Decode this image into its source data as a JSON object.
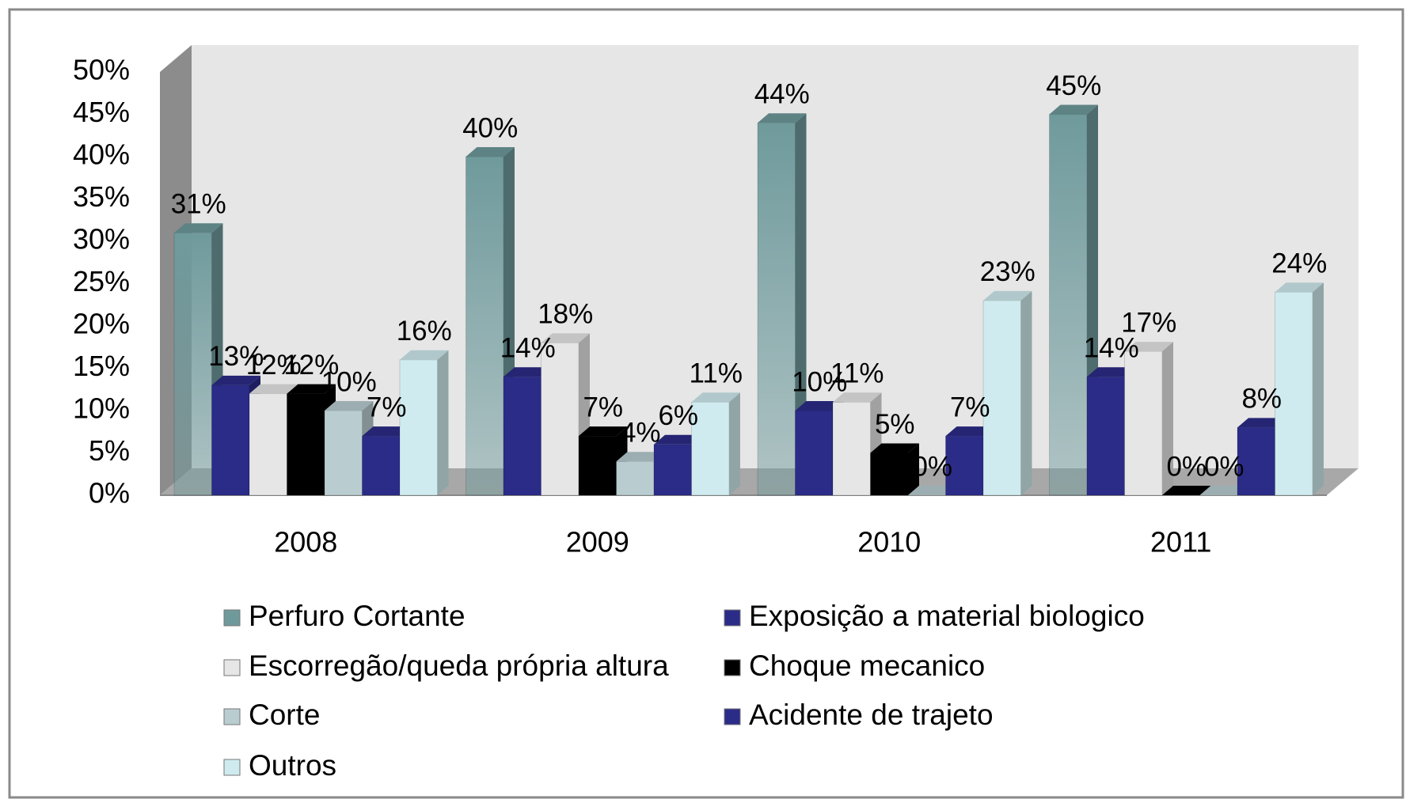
{
  "chart_data": {
    "type": "bar3d",
    "categories": [
      "2008",
      "2009",
      "2010",
      "2011"
    ],
    "series": [
      {
        "name": "Perfuro Cortante",
        "color": "#6f9a9c",
        "values": [
          31,
          40,
          44,
          45
        ],
        "value_labels": [
          "31%",
          "40%",
          "44%",
          "45%"
        ]
      },
      {
        "name": "Exposição a material biologico",
        "color": "#2b2b88",
        "values": [
          13,
          14,
          10,
          14
        ],
        "value_labels": [
          "13%",
          "14%",
          "10%",
          "14%"
        ]
      },
      {
        "name": "Escorregão/queda própria altura",
        "color": "#e6e6e6",
        "values": [
          12,
          18,
          11,
          17
        ],
        "value_labels": [
          "12%",
          "18%",
          "11%",
          "17%"
        ]
      },
      {
        "name": "Choque mecanico",
        "color": "#000000",
        "values": [
          12,
          7,
          5,
          0
        ],
        "value_labels": [
          "12%",
          "7%",
          "5%",
          "0%"
        ]
      },
      {
        "name": "Corte",
        "color": "#b9cdd1",
        "values": [
          10,
          4,
          0,
          0
        ],
        "value_labels": [
          "10%",
          "4%",
          "0%",
          "0%"
        ]
      },
      {
        "name": "Acidente de trajeto",
        "color": "#2b2b88",
        "values": [
          7,
          6,
          7,
          8
        ],
        "value_labels": [
          "7%",
          "6%",
          "7%",
          "8%"
        ]
      },
      {
        "name": "Outros",
        "color": "#cfebef",
        "values": [
          16,
          11,
          23,
          24
        ],
        "value_labels": [
          "16%",
          "11%",
          "23%",
          "24%"
        ]
      }
    ],
    "ylim": [
      0,
      50
    ],
    "yticks": [
      {
        "value": 0,
        "label": "0%"
      },
      {
        "value": 5,
        "label": "5%"
      },
      {
        "value": 10,
        "label": "10%"
      },
      {
        "value": 15,
        "label": "15%"
      },
      {
        "value": 20,
        "label": "20%"
      },
      {
        "value": 25,
        "label": "25%"
      },
      {
        "value": 30,
        "label": "30%"
      },
      {
        "value": 35,
        "label": "35%"
      },
      {
        "value": 40,
        "label": "40%"
      },
      {
        "value": 45,
        "label": "45%"
      },
      {
        "value": 50,
        "label": "50%"
      }
    ],
    "grid": false,
    "legend": "bottom"
  }
}
